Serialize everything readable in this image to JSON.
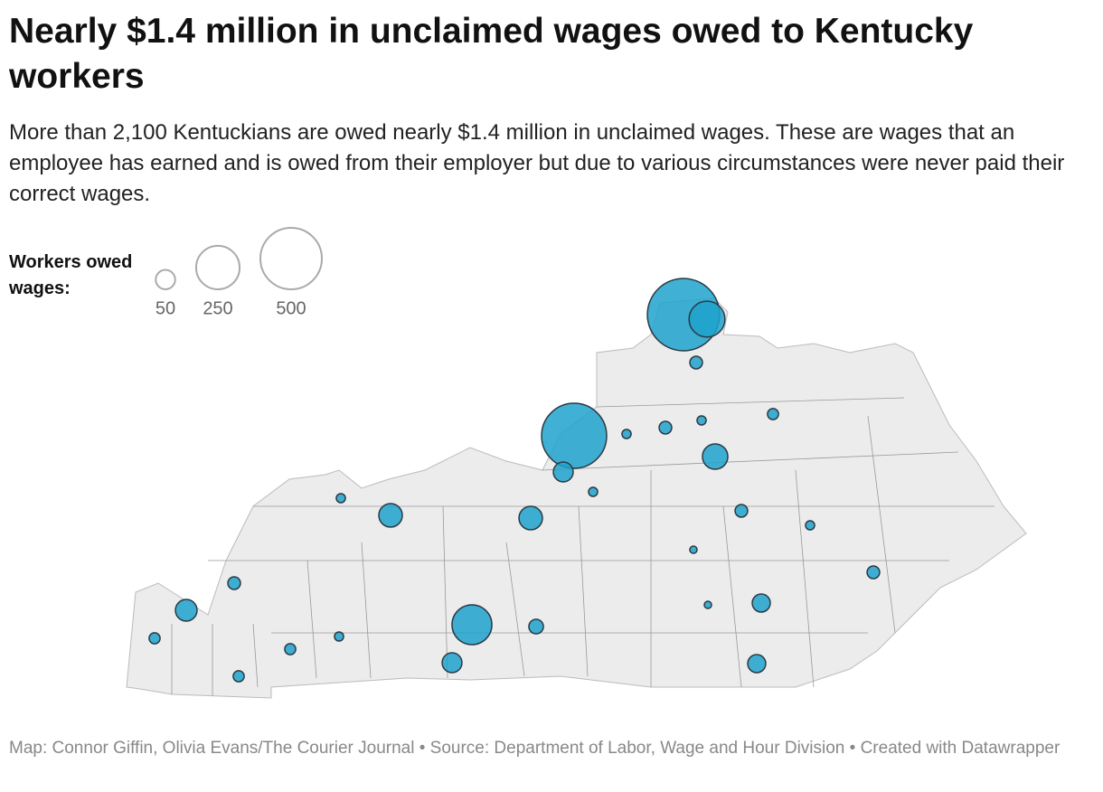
{
  "header": {
    "title": "Nearly $1.4 million in unclaimed wages owed to Kentucky workers",
    "subtitle": "More than 2,100 Kentuckians are owed nearly $1.4 million in unclaimed wages. These are wages that an employee has earned and is owed from their employer but due to various circumstances were never paid their correct wages."
  },
  "chart_data": {
    "type": "symbol-map",
    "color": "#1fa2cc",
    "legend": {
      "title": "Workers owed wages:",
      "values": [
        50,
        250,
        500
      ]
    },
    "values": [
      690,
      170,
      21,
      560,
      52,
      11,
      21,
      11,
      16,
      85,
      11,
      11,
      73,
      73,
      21,
      11,
      7,
      21,
      21,
      62,
      210,
      28,
      43,
      7,
      16,
      11,
      16,
      52,
      43,
      16
    ]
  },
  "footer": "Map: Connor Giffin, Olivia Evans/The Courier Journal • Source: Department of Labor, Wage and Hour Division • Created with Datawrapper"
}
